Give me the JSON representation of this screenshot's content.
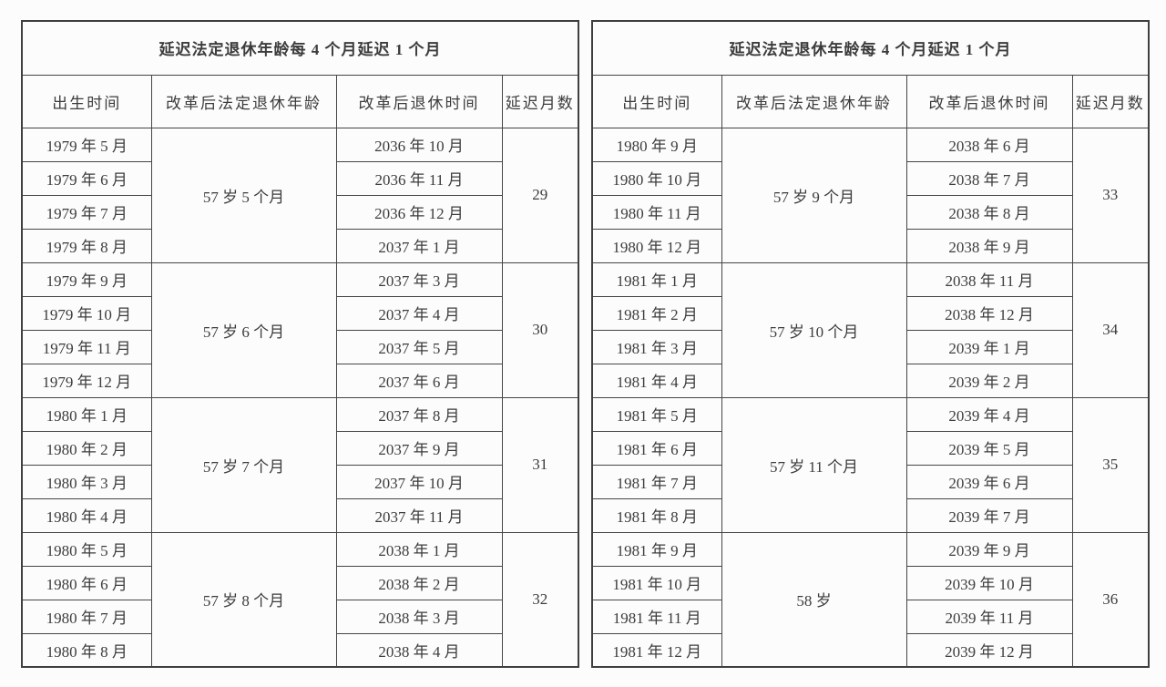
{
  "tables": [
    {
      "title": "延迟法定退休年龄每 4 个月延迟 1 个月",
      "headers": [
        "出生时间",
        "改革后法定退休年龄",
        "改革后退休时间",
        "延迟月数"
      ],
      "groups": [
        {
          "age": "57 岁 5 个月",
          "delay_months": "29",
          "rows": [
            {
              "birth": "1979 年 5 月",
              "retire": "2036 年 10 月"
            },
            {
              "birth": "1979 年 6 月",
              "retire": "2036 年 11 月"
            },
            {
              "birth": "1979 年 7 月",
              "retire": "2036 年 12 月"
            },
            {
              "birth": "1979 年 8 月",
              "retire": "2037 年 1 月"
            }
          ]
        },
        {
          "age": "57 岁 6 个月",
          "delay_months": "30",
          "rows": [
            {
              "birth": "1979 年 9 月",
              "retire": "2037 年 3 月"
            },
            {
              "birth": "1979 年 10 月",
              "retire": "2037 年 4 月"
            },
            {
              "birth": "1979 年 11 月",
              "retire": "2037 年 5 月"
            },
            {
              "birth": "1979 年 12 月",
              "retire": "2037 年 6 月"
            }
          ]
        },
        {
          "age": "57 岁 7 个月",
          "delay_months": "31",
          "rows": [
            {
              "birth": "1980 年 1 月",
              "retire": "2037 年 8 月"
            },
            {
              "birth": "1980 年 2 月",
              "retire": "2037 年 9 月"
            },
            {
              "birth": "1980 年 3 月",
              "retire": "2037 年 10 月"
            },
            {
              "birth": "1980 年 4 月",
              "retire": "2037 年 11 月"
            }
          ]
        },
        {
          "age": "57 岁 8 个月",
          "delay_months": "32",
          "rows": [
            {
              "birth": "1980 年 5 月",
              "retire": "2038 年 1 月"
            },
            {
              "birth": "1980 年 6 月",
              "retire": "2038 年 2 月"
            },
            {
              "birth": "1980 年 7 月",
              "retire": "2038 年 3 月"
            },
            {
              "birth": "1980 年 8 月",
              "retire": "2038 年 4 月"
            }
          ]
        }
      ]
    },
    {
      "title": "延迟法定退休年龄每 4 个月延迟 1 个月",
      "headers": [
        "出生时间",
        "改革后法定退休年龄",
        "改革后退休时间",
        "延迟月数"
      ],
      "groups": [
        {
          "age": "57 岁 9 个月",
          "delay_months": "33",
          "rows": [
            {
              "birth": "1980 年 9 月",
              "retire": "2038 年 6 月"
            },
            {
              "birth": "1980 年 10 月",
              "retire": "2038 年 7 月"
            },
            {
              "birth": "1980 年 11 月",
              "retire": "2038 年 8 月"
            },
            {
              "birth": "1980 年 12 月",
              "retire": "2038 年 9 月"
            }
          ]
        },
        {
          "age": "57 岁 10 个月",
          "delay_months": "34",
          "rows": [
            {
              "birth": "1981 年 1 月",
              "retire": "2038 年 11 月"
            },
            {
              "birth": "1981 年 2 月",
              "retire": "2038 年 12 月"
            },
            {
              "birth": "1981 年 3 月",
              "retire": "2039 年 1 月"
            },
            {
              "birth": "1981 年 4 月",
              "retire": "2039 年 2 月"
            }
          ]
        },
        {
          "age": "57 岁 11 个月",
          "delay_months": "35",
          "rows": [
            {
              "birth": "1981 年 5 月",
              "retire": "2039 年 4 月"
            },
            {
              "birth": "1981 年 6 月",
              "retire": "2039 年 5 月"
            },
            {
              "birth": "1981 年 7 月",
              "retire": "2039 年 6 月"
            },
            {
              "birth": "1981 年 8 月",
              "retire": "2039 年 7 月"
            }
          ]
        },
        {
          "age": "58 岁",
          "delay_months": "36",
          "rows": [
            {
              "birth": "1981 年 9 月",
              "retire": "2039 年 9 月"
            },
            {
              "birth": "1981 年 10 月",
              "retire": "2039 年 10 月"
            },
            {
              "birth": "1981 年 11 月",
              "retire": "2039 年 11 月"
            },
            {
              "birth": "1981 年 12 月",
              "retire": "2039 年 12 月"
            }
          ]
        }
      ]
    }
  ],
  "colors": {
    "background": "#fcfcfc",
    "border": "#454545",
    "text": "#3c3c3c"
  }
}
